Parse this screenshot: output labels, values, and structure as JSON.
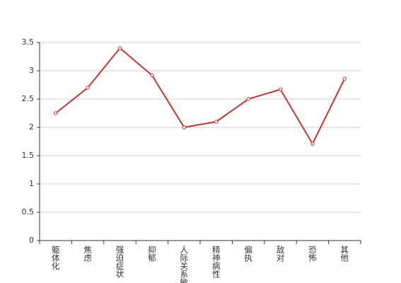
{
  "chart_data": {
    "type": "line",
    "categories": [
      "躯体化",
      "焦虑",
      "强迫症状",
      "抑郁",
      "人际关系敏感",
      "精神病性",
      "偏执",
      "敌对",
      "恐怖",
      "其他"
    ],
    "series": [
      {
        "color": "#c23531",
        "values": [
          2.25,
          2.7,
          3.4,
          2.92,
          2.0,
          2.1,
          2.5,
          2.67,
          1.71,
          2.86
        ]
      }
    ],
    "ylim": [
      0,
      3.5
    ],
    "yticks": [
      0,
      0.5,
      1,
      1.5,
      2,
      2.5,
      3,
      3.5
    ],
    "grid": true
  }
}
